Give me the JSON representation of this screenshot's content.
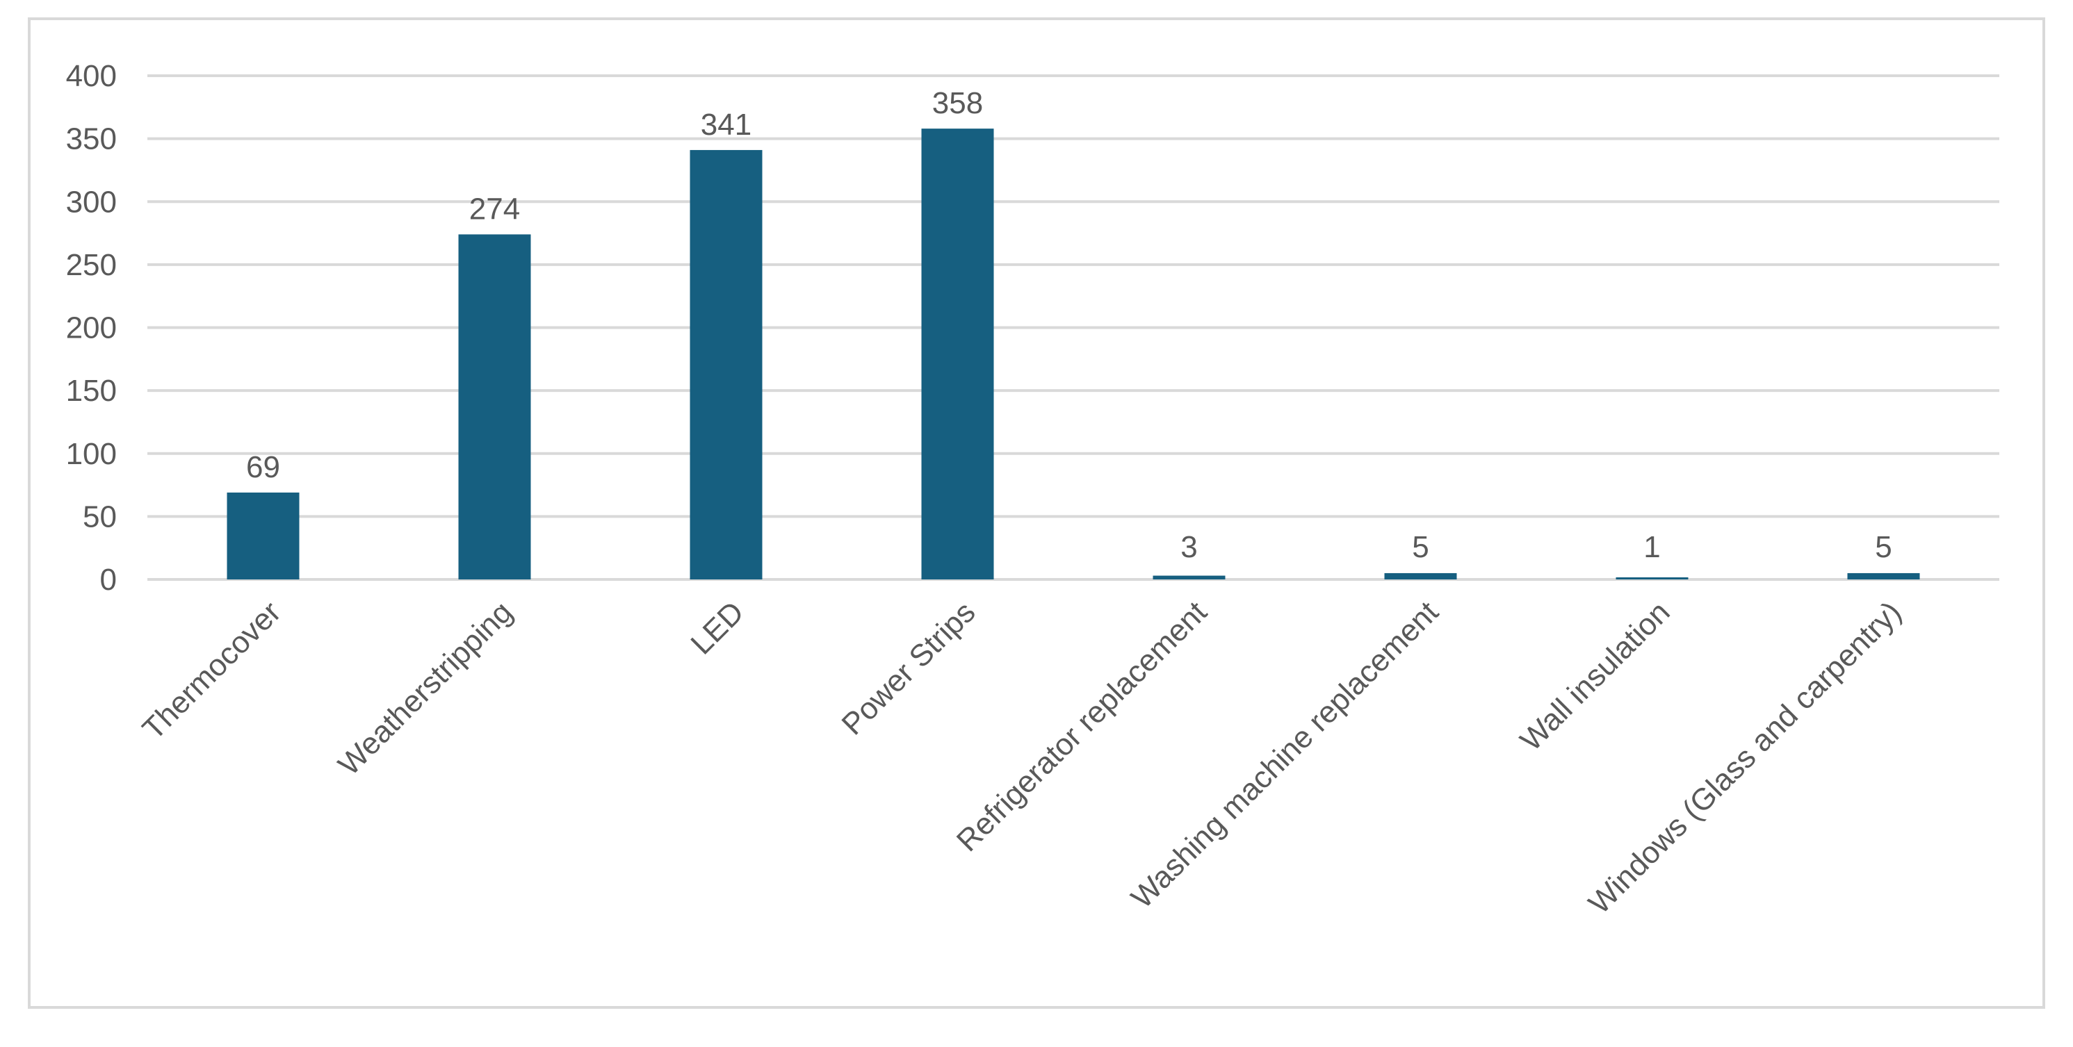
{
  "chart_data": {
    "type": "bar",
    "title": "",
    "xlabel": "",
    "ylabel": "",
    "categories": [
      "Thermocover",
      "Weatherstripping",
      "LED",
      "Power Strips",
      "Refrigerator replacement",
      "Washing machine replacement",
      "Wall insulation",
      "Windows (Glass and carpentry)"
    ],
    "values": [
      69,
      274,
      341,
      358,
      3,
      5,
      1,
      5
    ],
    "data_labels": [
      "69",
      "274",
      "341",
      "358",
      "3",
      "5",
      "1",
      "5"
    ],
    "ylim": [
      0,
      400
    ],
    "yticks": [
      0,
      50,
      100,
      150,
      200,
      250,
      300,
      350,
      400
    ],
    "ytick_labels": [
      "0",
      "50",
      "100",
      "150",
      "200",
      "250",
      "300",
      "350",
      "400"
    ],
    "grid": true,
    "legend": "none",
    "colors": {
      "bar": "#165f80",
      "grid": "#d9d9d9",
      "text": "#595959",
      "border": "#d9d9d9"
    }
  }
}
